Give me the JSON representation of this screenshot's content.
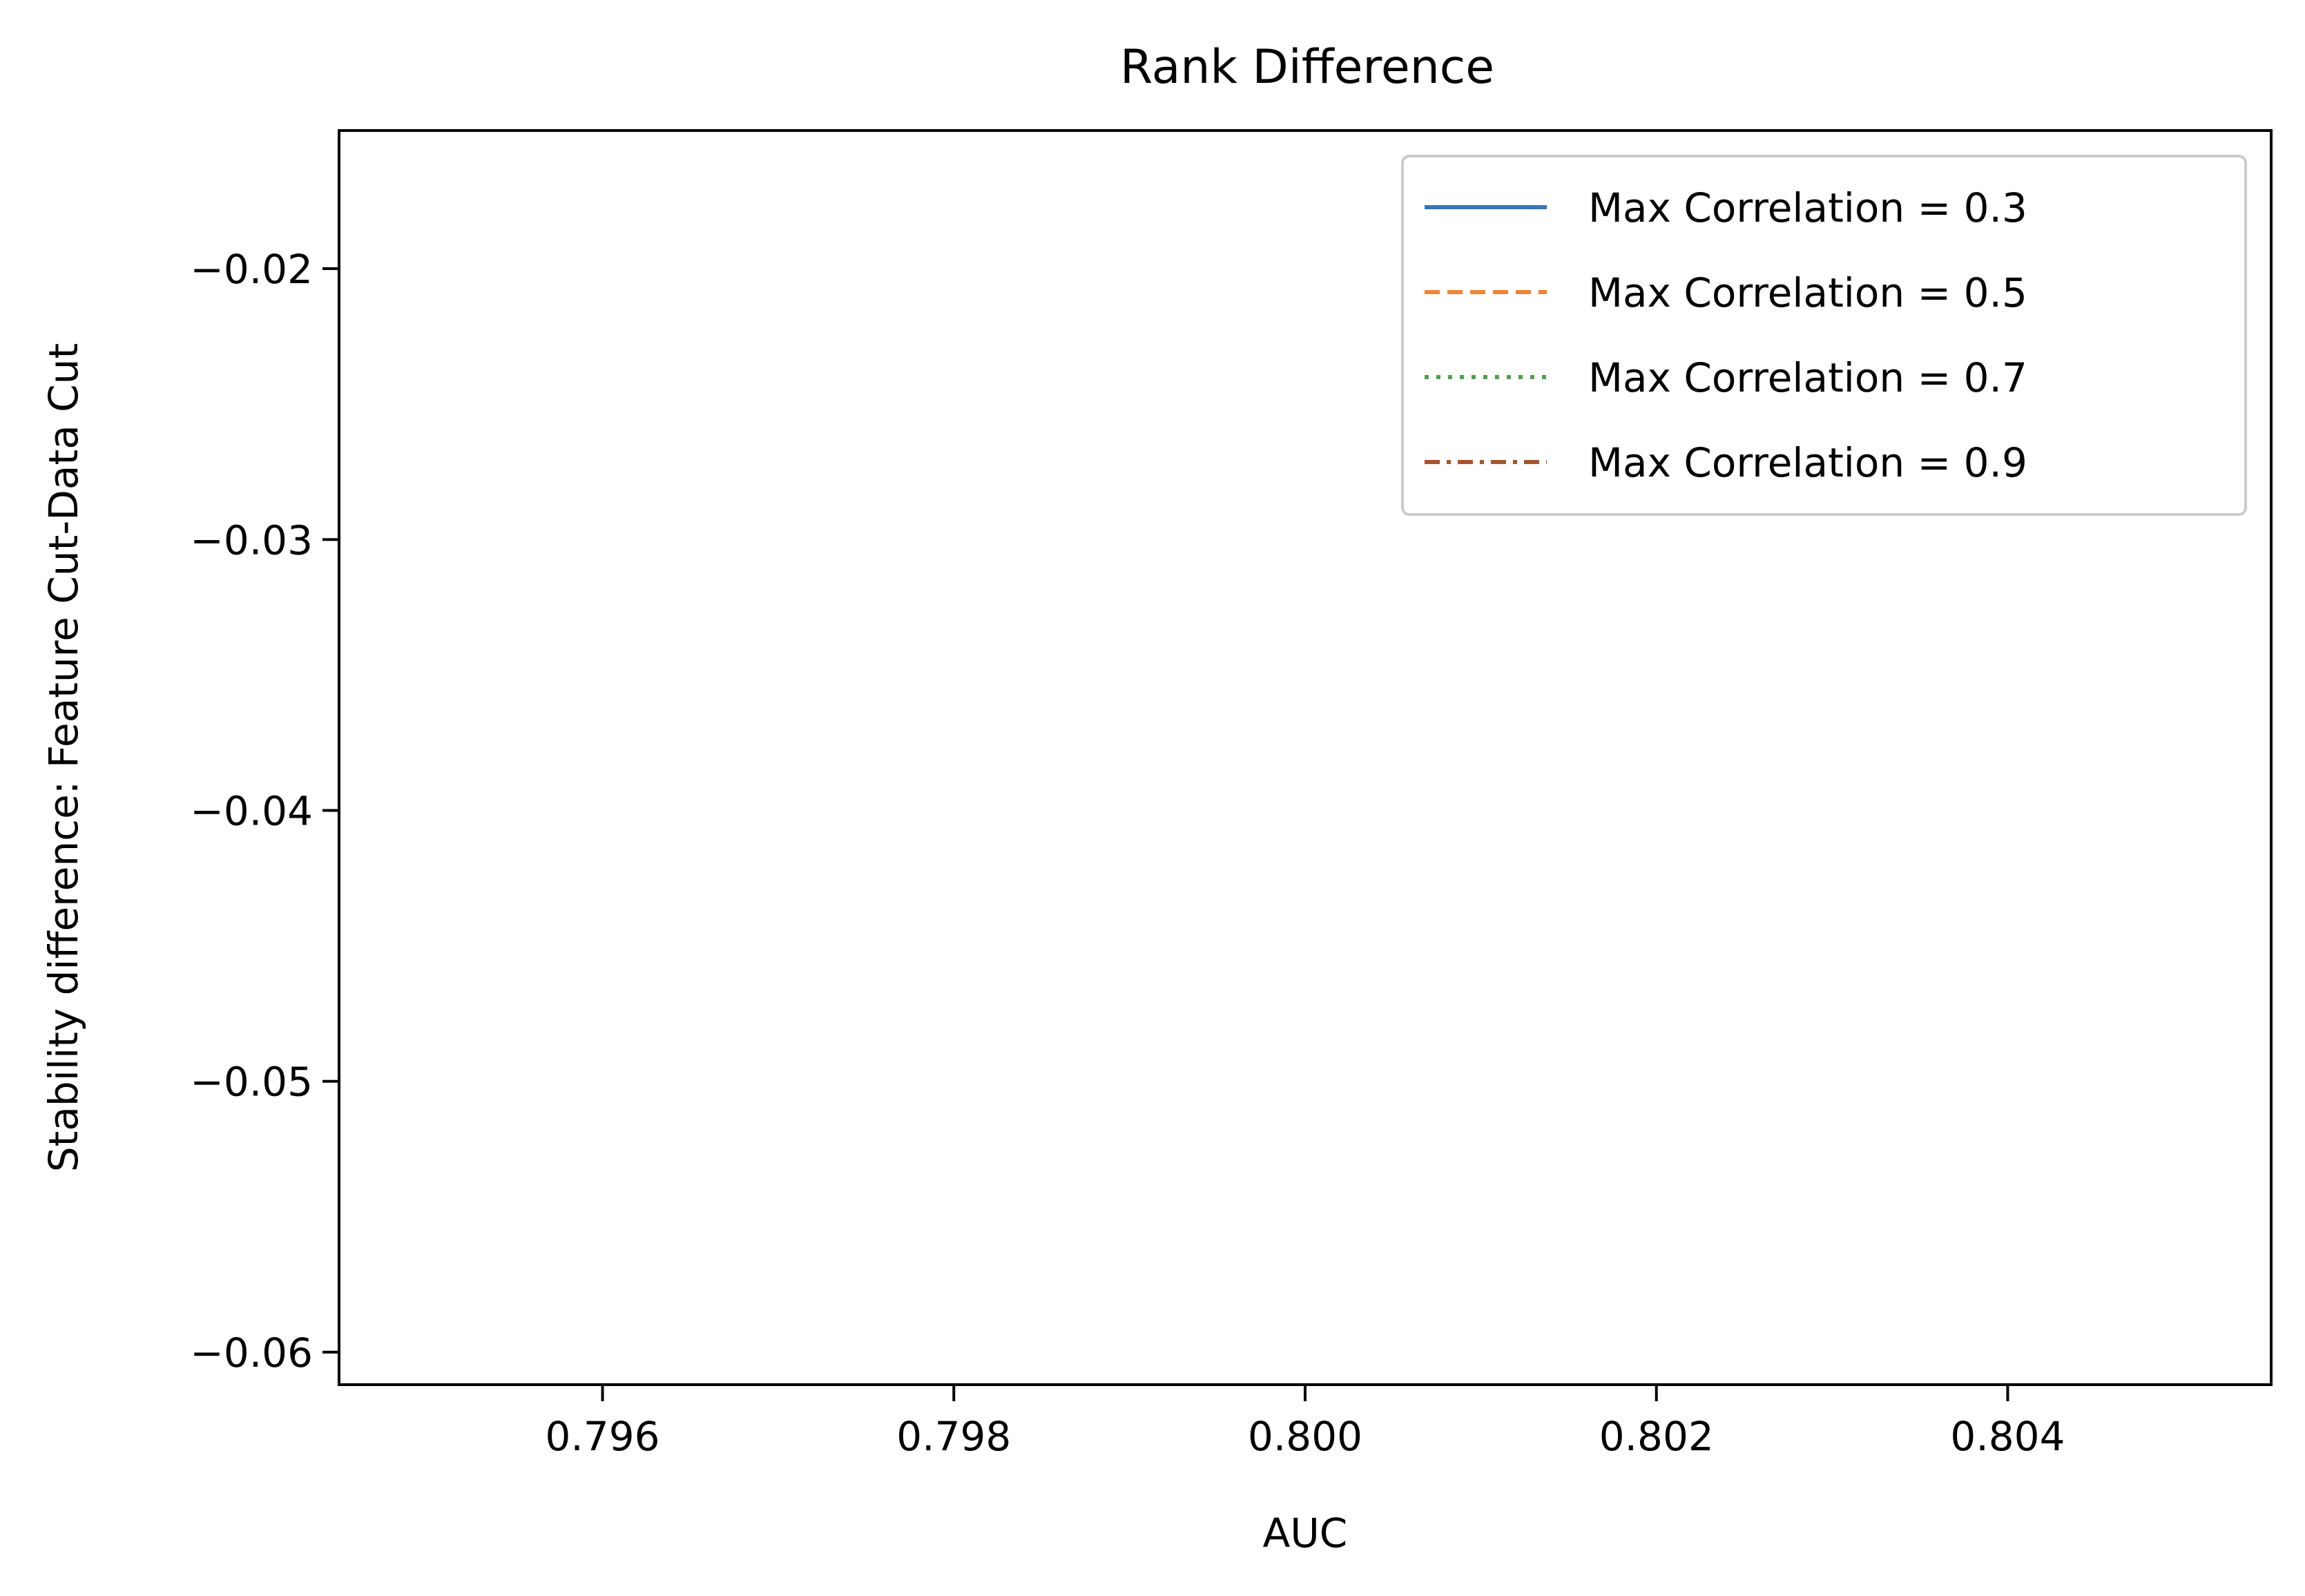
{
  "chart_data": {
    "type": "line",
    "title": "Rank Difference",
    "xlabel": "AUC",
    "ylabel": "Stability difference: Feature Cut-Data Cut",
    "xlim": [
      0.7945,
      0.8055
    ],
    "ylim": [
      -0.0612,
      -0.0149
    ],
    "xticks": [
      0.796,
      0.798,
      0.8,
      0.802,
      0.804
    ],
    "xtick_labels": [
      "0.796",
      "0.798",
      "0.800",
      "0.802",
      "0.804"
    ],
    "yticks": [
      -0.02,
      -0.03,
      -0.04,
      -0.05,
      -0.06
    ],
    "ytick_labels": [
      "−0.02",
      "−0.03",
      "−0.04",
      "−0.05",
      "−0.06"
    ],
    "grid": false,
    "legend_position": "top-right",
    "series": [
      {
        "name": "Max Correlation = 0.3",
        "style": "solid",
        "color": "#3a76af",
        "x": [],
        "y": []
      },
      {
        "name": "Max Correlation = 0.5",
        "style": "dashed",
        "color": "#ef8636",
        "x": [],
        "y": []
      },
      {
        "name": "Max Correlation = 0.7",
        "style": "dotted",
        "color": "#50a14f",
        "x": [],
        "y": []
      },
      {
        "name": "Max Correlation = 0.9",
        "style": "dashdot",
        "color": "#a65628",
        "x": [],
        "y": []
      }
    ]
  }
}
